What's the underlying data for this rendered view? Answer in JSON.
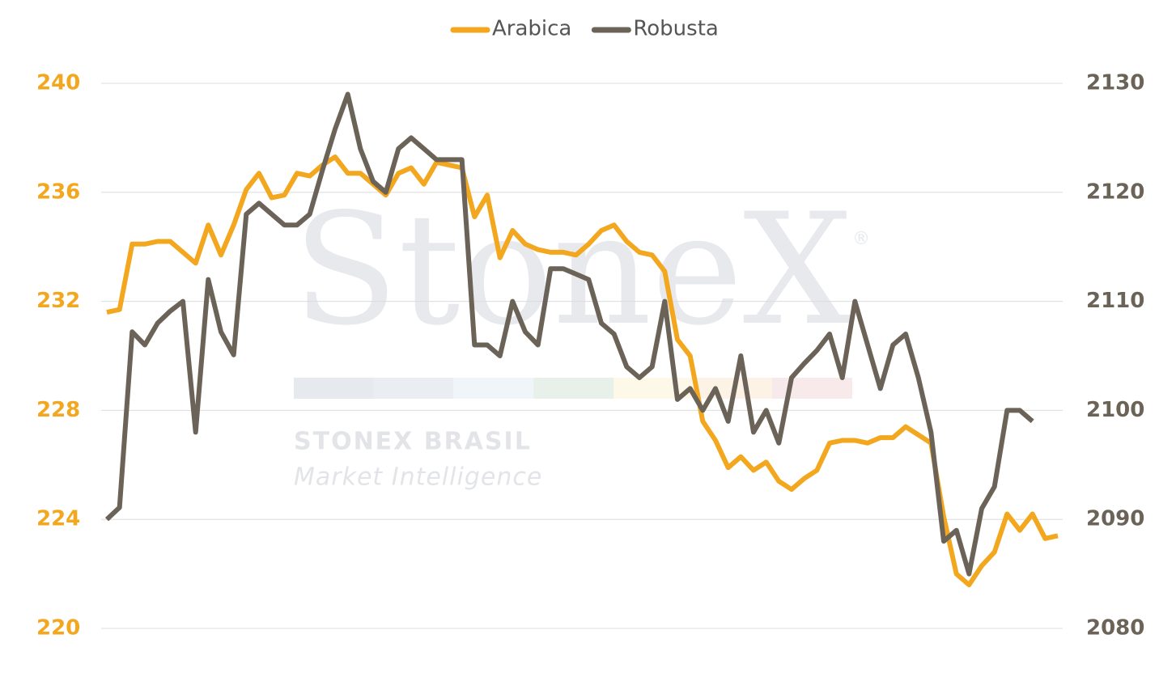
{
  "chart_data": {
    "type": "line",
    "watermark": {
      "logo": "StoneX",
      "mark": "®",
      "company": "STONEX BRASIL",
      "tagline": "Market Intelligence"
    },
    "series": [
      {
        "name": "Arabica",
        "color": "#f2a71e",
        "axis": "y",
        "values": [
          231.6,
          231.7,
          234.1,
          234.1,
          234.2,
          234.2,
          233.8,
          233.4,
          234.8,
          233.7,
          234.8,
          236.1,
          236.7,
          235.8,
          235.9,
          236.7,
          236.6,
          237.0,
          237.3,
          236.7,
          236.7,
          236.3,
          235.9,
          236.7,
          236.9,
          236.3,
          237.1,
          237.0,
          236.9,
          235.1,
          235.9,
          233.6,
          234.6,
          234.1,
          233.9,
          233.8,
          233.8,
          233.7,
          234.1,
          234.6,
          234.8,
          234.2,
          233.8,
          233.7,
          233.1,
          230.6,
          230.0,
          227.6,
          226.9,
          225.9,
          226.3,
          225.8,
          226.1,
          225.4,
          225.1,
          225.5,
          225.8,
          226.8,
          226.9,
          226.9,
          226.8,
          227.0,
          227.0,
          227.4,
          227.1,
          226.8,
          224.1,
          222.0,
          221.6,
          222.3,
          222.8,
          224.2,
          223.6,
          224.2,
          223.3,
          223.4
        ]
      },
      {
        "name": "Robusta",
        "color": "#6b6358",
        "axis": "y2",
        "values": [
          2090,
          2091.1,
          2107.2,
          2106,
          2108,
          2109.1,
          2110,
          2098,
          2112,
          2107.2,
          2105.1,
          2118,
          2119,
          2118,
          2117,
          2117,
          2118,
          2122,
          2125.8,
          2129,
          2124,
          2121,
          2120,
          2124,
          2125,
          2124,
          2123,
          2123,
          2123,
          2106,
          2106,
          2105,
          2110,
          2107.2,
          2106,
          2113,
          2113,
          2112.5,
          2112,
          2108,
          2107,
          2104,
          2103,
          2104,
          2110,
          2101,
          2102,
          2100,
          2102,
          2099,
          2105,
          2098,
          2100,
          2097,
          2103,
          2104.3,
          2105.5,
          2107,
          2103,
          2110,
          2106,
          2102,
          2106,
          2107,
          2103,
          2098,
          2088,
          2089,
          2085,
          2091,
          2093,
          2100,
          2100,
          2099,
          null,
          null
        ]
      }
    ],
    "ylim": [
      220,
      240
    ],
    "yticks": [
      220,
      224,
      228,
      232,
      236,
      240
    ],
    "y2lim": [
      2080,
      2130
    ],
    "y2ticks": [
      2080,
      2090,
      2100,
      2110,
      2120,
      2130
    ],
    "grid": true,
    "legend": "top"
  }
}
